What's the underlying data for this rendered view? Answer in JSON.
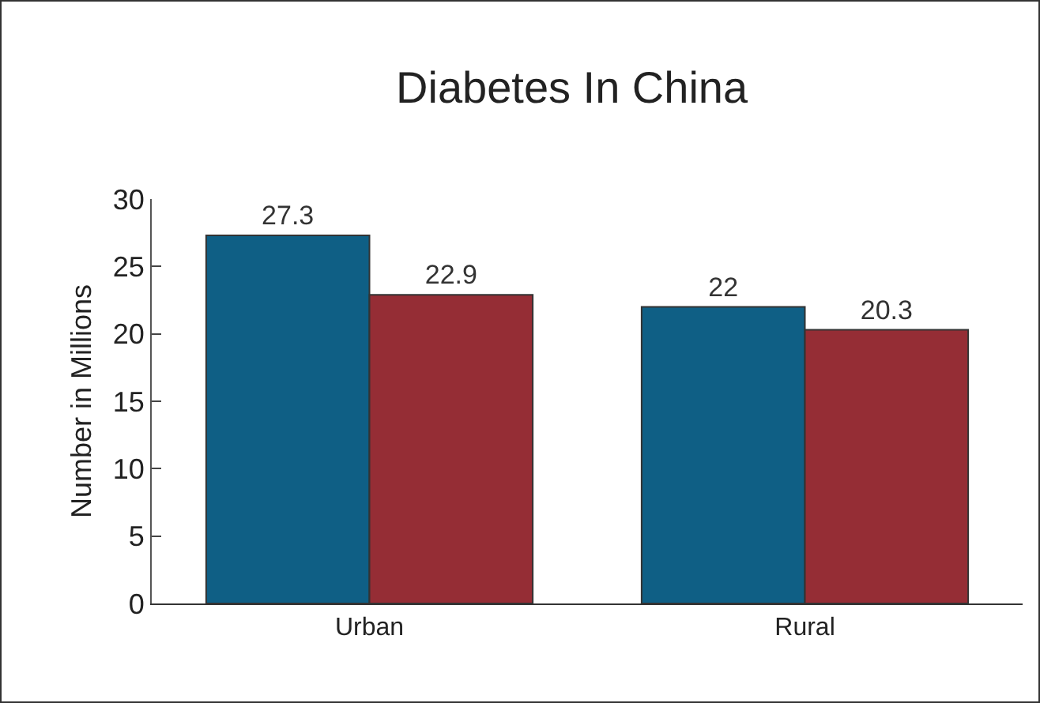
{
  "chart_data": {
    "type": "bar",
    "title": "Diabetes In China",
    "ylabel": "Number in Millions",
    "categories": [
      "Urban",
      "Rural"
    ],
    "series": [
      {
        "color": "#0f5f85",
        "values": [
          27.3,
          22
        ]
      },
      {
        "color": "#952d35",
        "values": [
          22.9,
          20.3
        ]
      }
    ],
    "ylim": [
      0,
      30
    ],
    "yticks": [
      0,
      5,
      10,
      15,
      20,
      25,
      30
    ],
    "data_labels": true
  }
}
